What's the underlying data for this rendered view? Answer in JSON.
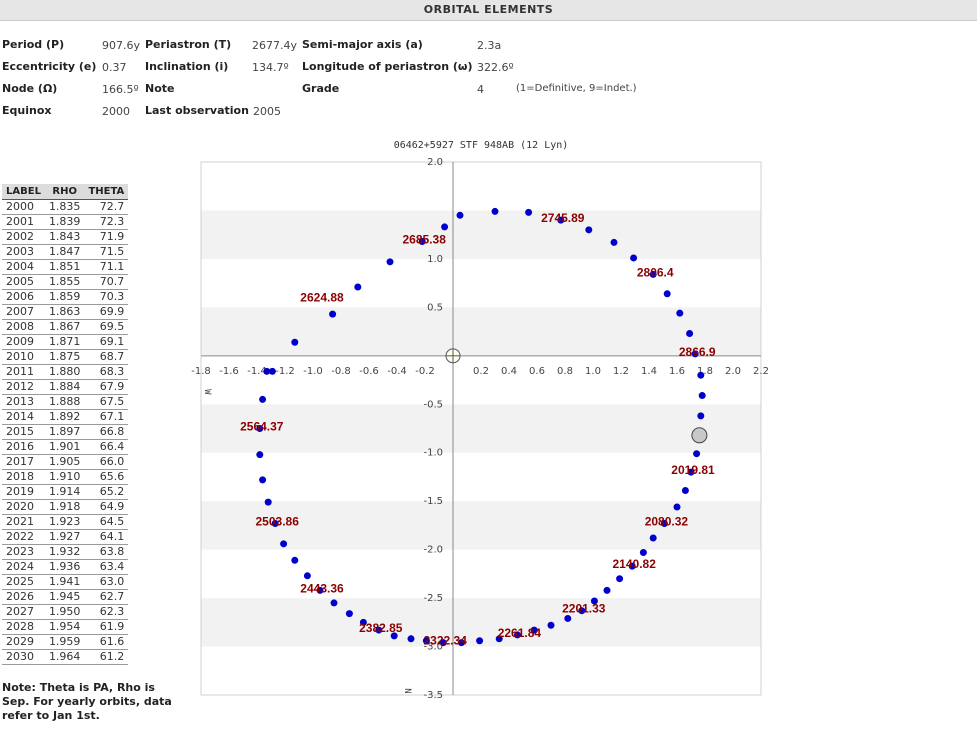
{
  "header": {
    "title": "ORBITAL ELEMENTS"
  },
  "elements": {
    "period_label": "Period (P)",
    "period_value": "907.6y",
    "periastron_label": "Periastron (T)",
    "periastron_value": "2677.4y",
    "sma_label": "Semi-major axis (a)",
    "sma_value": "2.3a",
    "ecc_label": "Eccentricity (e)",
    "ecc_value": "0.37",
    "inc_label": "Inclination (i)",
    "inc_value": "134.7º",
    "lop_label": "Longitude of periastron (ω)",
    "lop_value": "322.6º",
    "node_label": "Node (Ω)",
    "node_value": "166.5º",
    "note_label": "Note",
    "grade_label": "Grade",
    "grade_value": "4",
    "grade_hint": "(1=Definitive, 9=Indet.)",
    "equinox_label": "Equinox",
    "equinox_value": "2000",
    "lastobs_label": "Last observation",
    "lastobs_value": "2005"
  },
  "table": {
    "headers": [
      "LABEL",
      "RHO",
      "THETA"
    ],
    "rows": [
      [
        "2000",
        "1.835",
        "72.7"
      ],
      [
        "2001",
        "1.839",
        "72.3"
      ],
      [
        "2002",
        "1.843",
        "71.9"
      ],
      [
        "2003",
        "1.847",
        "71.5"
      ],
      [
        "2004",
        "1.851",
        "71.1"
      ],
      [
        "2005",
        "1.855",
        "70.7"
      ],
      [
        "2006",
        "1.859",
        "70.3"
      ],
      [
        "2007",
        "1.863",
        "69.9"
      ],
      [
        "2008",
        "1.867",
        "69.5"
      ],
      [
        "2009",
        "1.871",
        "69.1"
      ],
      [
        "2010",
        "1.875",
        "68.7"
      ],
      [
        "2011",
        "1.880",
        "68.3"
      ],
      [
        "2012",
        "1.884",
        "67.9"
      ],
      [
        "2013",
        "1.888",
        "67.5"
      ],
      [
        "2014",
        "1.892",
        "67.1"
      ],
      [
        "2015",
        "1.897",
        "66.8"
      ],
      [
        "2016",
        "1.901",
        "66.4"
      ],
      [
        "2017",
        "1.905",
        "66.0"
      ],
      [
        "2018",
        "1.910",
        "65.6"
      ],
      [
        "2019",
        "1.914",
        "65.2"
      ],
      [
        "2020",
        "1.918",
        "64.9"
      ],
      [
        "2021",
        "1.923",
        "64.5"
      ],
      [
        "2022",
        "1.927",
        "64.1"
      ],
      [
        "2023",
        "1.932",
        "63.8"
      ],
      [
        "2024",
        "1.936",
        "63.4"
      ],
      [
        "2025",
        "1.941",
        "63.0"
      ],
      [
        "2026",
        "1.945",
        "62.7"
      ],
      [
        "2027",
        "1.950",
        "62.3"
      ],
      [
        "2028",
        "1.954",
        "61.9"
      ],
      [
        "2029",
        "1.959",
        "61.6"
      ],
      [
        "2030",
        "1.964",
        "61.2"
      ]
    ]
  },
  "note": "Note: Theta is PA, Rho is Sep. For yearly orbits, data refer to Jan 1st.",
  "chart_data": {
    "type": "scatter",
    "title": "06462+5927 STF 948AB (12 Lyn)",
    "xlim": [
      -1.8,
      2.2
    ],
    "ylim": [
      -3.5,
      2.0
    ],
    "x_ticks": [
      -1.8,
      -1.6,
      -1.4,
      -1.2,
      -1.0,
      -0.8,
      -0.6,
      -0.4,
      -0.2,
      0.2,
      0.4,
      0.6,
      0.8,
      1.0,
      1.2,
      1.4,
      1.6,
      1.8,
      2.0,
      2.2
    ],
    "x_tick_labels": [
      "-1.8",
      "-1.6",
      "-1.4",
      "-1.2",
      "-1.0",
      "-0.8",
      "-0.6",
      "-0.4",
      "-0.2",
      "0.2",
      "0.4",
      "0.6",
      "0.8",
      "1.0",
      "1.2",
      "1.4",
      "1.6",
      "1.8",
      "2.0",
      "2.2"
    ],
    "y_ticks": [
      2.0,
      1.0,
      0.5,
      -0.5,
      -1.0,
      -1.5,
      -2.0,
      -2.5,
      -3.0,
      -3.5
    ],
    "y_tick_labels": [
      "2.0",
      "1.0",
      "0.5",
      "-0.5",
      "-1.0",
      "-1.5",
      "-2.0",
      "-2.5",
      "-3.0",
      "-3.5"
    ],
    "axis_marks": {
      "west": "W",
      "north": "N"
    },
    "grid": "horizontal bands",
    "primary_star": [
      0,
      0
    ],
    "current_position": [
      1.76,
      -0.82
    ],
    "orbit_points": {
      "x": [
        -1.29,
        -1.13,
        -0.86,
        -0.68,
        -0.45,
        -0.22,
        -0.06,
        0.05,
        0.3,
        0.54,
        0.77,
        0.97,
        1.15,
        1.29,
        1.43,
        1.53,
        1.62,
        1.69,
        1.73,
        1.77,
        1.78,
        1.77,
        1.76,
        1.74,
        1.7,
        1.66,
        1.6,
        1.51,
        1.43,
        1.36,
        1.28,
        1.19,
        1.1,
        1.01,
        0.92,
        0.82,
        0.7,
        0.58,
        0.46,
        0.33,
        0.19,
        0.06,
        -0.07,
        -0.19,
        -0.3,
        -0.42,
        -0.53,
        -0.64,
        -0.74,
        -0.85,
        -0.95,
        -1.04,
        -1.13,
        -1.21,
        -1.27,
        -1.32,
        -1.36,
        -1.38,
        -1.38,
        -1.36,
        -1.33
      ],
      "y": [
        -0.16,
        0.14,
        0.43,
        0.71,
        0.97,
        1.18,
        1.33,
        1.45,
        1.49,
        1.48,
        1.4,
        1.3,
        1.17,
        1.01,
        0.84,
        0.64,
        0.44,
        0.23,
        0.02,
        -0.2,
        -0.41,
        -0.62,
        -0.83,
        -1.01,
        -1.2,
        -1.39,
        -1.56,
        -1.73,
        -1.88,
        -2.03,
        -2.17,
        -2.3,
        -2.42,
        -2.53,
        -2.63,
        -2.71,
        -2.78,
        -2.83,
        -2.88,
        -2.92,
        -2.94,
        -2.96,
        -2.96,
        -2.94,
        -2.92,
        -2.89,
        -2.83,
        -2.75,
        -2.66,
        -2.55,
        -2.42,
        -2.27,
        -2.11,
        -1.94,
        -1.73,
        -1.51,
        -1.28,
        -1.02,
        -0.75,
        -0.45,
        -0.16
      ]
    },
    "epoch_labels": [
      {
        "text": "2685.38",
        "x": -0.22,
        "y": 1.18
      },
      {
        "text": "2745.89",
        "x": 0.77,
        "y": 1.4
      },
      {
        "text": "2806.4",
        "x": 1.43,
        "y": 0.84
      },
      {
        "text": "2866.9",
        "x": 1.73,
        "y": 0.02
      },
      {
        "text": "2019.81",
        "x": 1.7,
        "y": -1.2
      },
      {
        "text": "2080.32",
        "x": 1.51,
        "y": -1.73
      },
      {
        "text": "2140.82",
        "x": 1.28,
        "y": -2.17
      },
      {
        "text": "2201.33",
        "x": 0.92,
        "y": -2.63
      },
      {
        "text": "2261.84",
        "x": 0.46,
        "y": -2.88
      },
      {
        "text": "2322.34",
        "x": -0.07,
        "y": -2.96
      },
      {
        "text": "2382.85",
        "x": -0.53,
        "y": -2.83
      },
      {
        "text": "2443.36",
        "x": -0.95,
        "y": -2.42
      },
      {
        "text": "2503.86",
        "x": -1.27,
        "y": -1.73
      },
      {
        "text": "2564.37",
        "x": -1.38,
        "y": -0.75
      },
      {
        "text": "2624.88",
        "x": -0.95,
        "y": 0.58
      }
    ],
    "colors": {
      "points": "#0000cc",
      "labels": "#8b0000",
      "band": "#f2f2f2",
      "axis": "#888888"
    }
  }
}
